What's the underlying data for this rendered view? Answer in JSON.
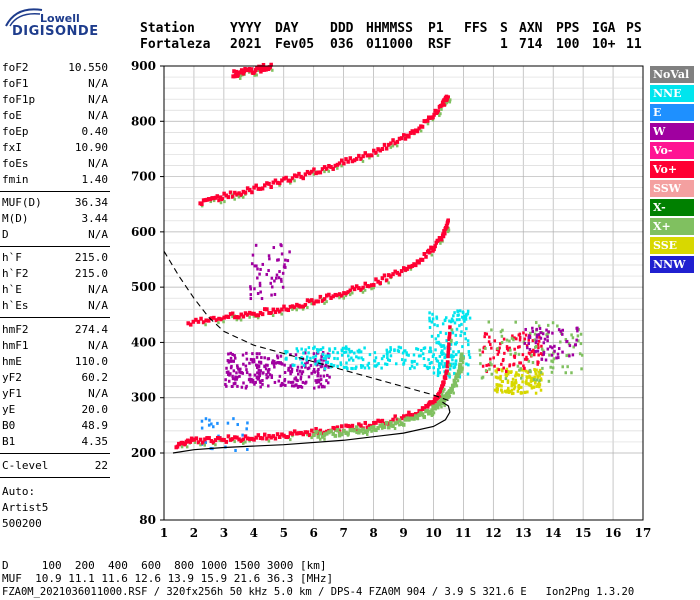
{
  "logo": {
    "line1": "Lowell",
    "line2": "DIGISONDE"
  },
  "header": {
    "labels": [
      "Station",
      "YYYY",
      "DAY",
      "DDD",
      "HHMMSS",
      "P1",
      "FFS",
      "S",
      "AXN",
      "PPS",
      "IGA",
      "PS"
    ],
    "values": [
      "Fortaleza",
      "2021",
      "Fev05",
      "036",
      "011000",
      "RSF",
      "1",
      "714",
      "100",
      "10+",
      "11"
    ]
  },
  "params": {
    "group1": [
      {
        "key": "foF2",
        "value": "10.550"
      },
      {
        "key": "foF1",
        "value": "N/A"
      },
      {
        "key": "foF1p",
        "value": "N/A"
      },
      {
        "key": "foE",
        "value": "N/A"
      },
      {
        "key": "foEp",
        "value": "0.40"
      },
      {
        "key": "fxI",
        "value": "10.90"
      },
      {
        "key": "foEs",
        "value": "N/A"
      },
      {
        "key": "fmin",
        "value": "1.40"
      }
    ],
    "group2": [
      {
        "key": "MUF(D)",
        "value": "36.34"
      },
      {
        "key": "M(D)",
        "value": "3.44"
      },
      {
        "key": "D",
        "value": "N/A"
      }
    ],
    "group3": [
      {
        "key": "h`F",
        "value": "215.0"
      },
      {
        "key": "h`F2",
        "value": "215.0"
      },
      {
        "key": "h`E",
        "value": "N/A"
      },
      {
        "key": "h`Es",
        "value": "N/A"
      }
    ],
    "group4": [
      {
        "key": "hmF2",
        "value": "274.4"
      },
      {
        "key": "hmF1",
        "value": "N/A"
      },
      {
        "key": "hmE",
        "value": "110.0"
      },
      {
        "key": "yF2",
        "value": "60.2"
      },
      {
        "key": "yF1",
        "value": "N/A"
      },
      {
        "key": "yE",
        "value": "20.0"
      },
      {
        "key": "B0",
        "value": "48.9"
      },
      {
        "key": "B1",
        "value": "4.35"
      }
    ],
    "group5": [
      {
        "key": "C-level",
        "value": "22"
      }
    ],
    "auto": [
      "Auto:",
      "Artist5",
      "500200"
    ]
  },
  "legend": [
    {
      "label": "NoVal",
      "color": "#808080"
    },
    {
      "label": "NNE",
      "color": "#00e5ee"
    },
    {
      "label": "E",
      "color": "#1e90ff"
    },
    {
      "label": "W",
      "color": "#a000a0"
    },
    {
      "label": "Vo-",
      "color": "#ff1493"
    },
    {
      "label": "Vo+",
      "color": "#ff0033"
    },
    {
      "label": "SSW",
      "color": "#f4a0a0"
    },
    {
      "label": "X-",
      "color": "#008000"
    },
    {
      "label": "X+",
      "color": "#80c060"
    },
    {
      "label": "SSE",
      "color": "#d8d800"
    },
    {
      "label": "NNW",
      "color": "#2020d0"
    }
  ],
  "footer": {
    "line1": "D     100  200  400  600  800 1000 1500 3000 [km]",
    "line2": "MUF  10.9 11.1 11.6 12.6 13.9 15.9 21.6 36.3 [MHz]",
    "line3": "FZA0M_2021036011000.RSF / 320fx256h 50 kHz 5.0 km / DPS-4 FZA0M 904 / 3.9 S 321.6 E   Ion2Png 1.3.20"
  },
  "chart_data": {
    "type": "scatter",
    "xlim": [
      1,
      17
    ],
    "ylim": [
      80,
      900
    ],
    "xticks": [
      "1",
      "2",
      "3",
      "4",
      "5",
      "6",
      "7",
      "8",
      "9",
      "10",
      "11",
      "12",
      "13",
      "14",
      "15",
      "16",
      "17"
    ],
    "yticks": [
      "80",
      "200",
      "300",
      "400",
      "500",
      "600",
      "700",
      "800",
      "900"
    ],
    "grid": true,
    "traces": [
      {
        "name": "O-trace 1st hop",
        "color": "#ff0033",
        "x": [
          1.4,
          2.0,
          3.0,
          4.0,
          5.0,
          6.0,
          7.0,
          8.0,
          9.0,
          9.8,
          10.2,
          10.45,
          10.55
        ],
        "y": [
          215,
          222,
          225,
          228,
          232,
          238,
          244,
          252,
          265,
          282,
          305,
          350,
          430
        ]
      },
      {
        "name": "X-trace 1st hop",
        "color": "#80c060",
        "x": [
          6.0,
          7.0,
          8.0,
          9.0,
          9.8,
          10.3,
          10.6,
          10.85,
          10.95
        ],
        "y": [
          232,
          238,
          245,
          256,
          272,
          295,
          318,
          345,
          380
        ]
      },
      {
        "name": "O-trace 2nd hop",
        "color": "#ff0033",
        "x": [
          1.8,
          3.0,
          4.0,
          5.0,
          6.0,
          7.0,
          8.0,
          9.0,
          9.8,
          10.3,
          10.5
        ],
        "y": [
          435,
          445,
          452,
          462,
          475,
          490,
          508,
          530,
          560,
          590,
          620
        ]
      },
      {
        "name": "O-trace 3rd hop",
        "color": "#ff0033",
        "x": [
          2.2,
          3.0,
          4.0,
          5.0,
          6.0,
          7.0,
          8.0,
          9.0,
          9.8,
          10.3,
          10.5
        ],
        "y": [
          650,
          665,
          678,
          692,
          708,
          725,
          745,
          770,
          800,
          830,
          845
        ]
      },
      {
        "name": "O-trace 4th hop",
        "color": "#ff0033",
        "x": [
          3.3,
          3.7,
          4.2,
          4.6
        ],
        "y": [
          885,
          890,
          895,
          900
        ]
      }
    ],
    "clusters": [
      {
        "color": "#a000a0",
        "xr": [
          3.0,
          6.5
        ],
        "yr": [
          320,
          385
        ],
        "n": 260
      },
      {
        "color": "#00e5ee",
        "xr": [
          5.0,
          10.8
        ],
        "yr": [
          355,
          395
        ],
        "n": 200
      },
      {
        "color": "#00e5ee",
        "xr": [
          9.8,
          11.2
        ],
        "yr": [
          340,
          460
        ],
        "n": 130
      },
      {
        "color": "#d8d800",
        "xr": [
          12.0,
          13.6
        ],
        "yr": [
          310,
          355
        ],
        "n": 130
      },
      {
        "color": "#ff0033",
        "xr": [
          11.6,
          13.6
        ],
        "yr": [
          350,
          420
        ],
        "n": 90
      },
      {
        "color": "#80c060",
        "xr": [
          11.5,
          15.0
        ],
        "yr": [
          330,
          440
        ],
        "n": 90
      },
      {
        "color": "#a000a0",
        "xr": [
          13.0,
          14.8
        ],
        "yr": [
          370,
          430
        ],
        "n": 60
      },
      {
        "color": "#a000a0",
        "xr": [
          3.8,
          5.2
        ],
        "yr": [
          480,
          580
        ],
        "n": 50
      },
      {
        "color": "#1e90ff",
        "xr": [
          2.2,
          4.0
        ],
        "yr": [
          205,
          265
        ],
        "n": 25
      }
    ],
    "profile_solid": {
      "x": [
        1.3,
        2.0,
        3.0,
        5.0,
        7.0,
        9.0,
        10.0,
        10.4,
        10.55,
        10.5,
        10.3
      ],
      "y": [
        200,
        206,
        210,
        215,
        223,
        236,
        248,
        260,
        274,
        285,
        292
      ]
    },
    "profile_dashed": {
      "x": [
        1.0,
        1.5,
        2.0,
        2.5,
        3.0,
        4.0,
        5.0,
        6.0,
        7.0,
        8.0,
        9.0,
        10.0,
        10.5
      ],
      "y": [
        565,
        520,
        480,
        445,
        420,
        395,
        380,
        365,
        350,
        335,
        320,
        305,
        295
      ]
    }
  }
}
